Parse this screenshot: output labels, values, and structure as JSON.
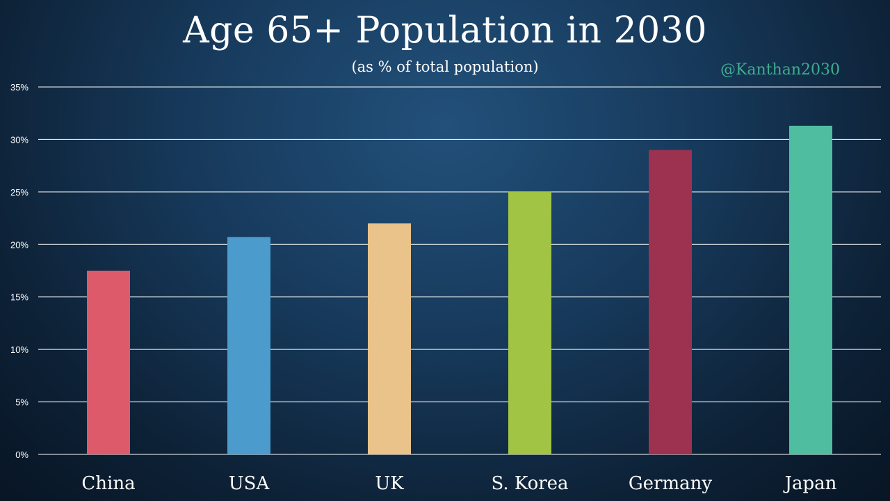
{
  "chart_data": {
    "type": "bar",
    "title": "Age 65+ Population in 2030",
    "subtitle": "(as % of total population)",
    "watermark": "@Kanthan2030",
    "xlabel": "",
    "ylabel": "",
    "ylim": [
      0,
      35
    ],
    "yticks": [
      0,
      5,
      10,
      15,
      20,
      25,
      30,
      35
    ],
    "ytick_labels": [
      "0%",
      "5%",
      "10%",
      "15%",
      "20%",
      "25%",
      "30%",
      "35%"
    ],
    "grid": true,
    "categories": [
      "China",
      "USA",
      "UK",
      "S. Korea",
      "Germany",
      "Japan"
    ],
    "values": [
      17.5,
      20.7,
      22.0,
      25.0,
      29.0,
      31.3
    ],
    "colors": [
      "#dc5a6a",
      "#4b9bcd",
      "#e9c38a",
      "#a1c445",
      "#9c3250",
      "#4fbea0"
    ]
  }
}
